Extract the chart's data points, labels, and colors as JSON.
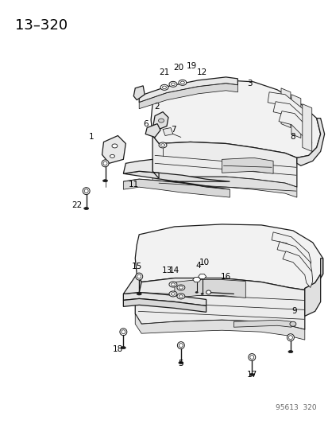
{
  "title": "13–320",
  "watermark": "95613  320",
  "bg_color": "#ffffff",
  "line_color": "#1a1a1a",
  "lw_main": 0.9,
  "lw_thin": 0.55,
  "lw_thick": 1.4
}
